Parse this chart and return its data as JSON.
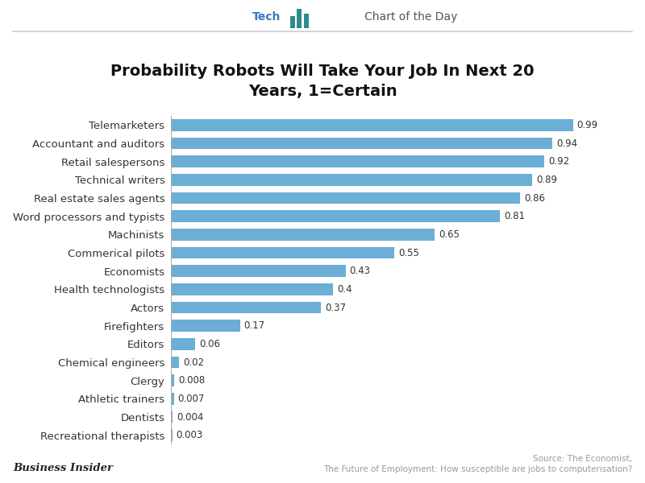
{
  "title": "Probability Robots Will Take Your Job In Next 20\nYears, 1=Certain",
  "categories": [
    "Telemarketers",
    "Accountant and auditors",
    "Retail salespersons",
    "Technical writers",
    "Real estate sales agents",
    "Word processors and typists",
    "Machinists",
    "Commerical pilots",
    "Economists",
    "Health technologists",
    "Actors",
    "Firefighters",
    "Editors",
    "Chemical engineers",
    "Clergy",
    "Athletic trainers",
    "Dentists",
    "Recreational therapists"
  ],
  "values": [
    0.99,
    0.94,
    0.92,
    0.89,
    0.86,
    0.81,
    0.65,
    0.55,
    0.43,
    0.4,
    0.37,
    0.17,
    0.06,
    0.02,
    0.008,
    0.007,
    0.004,
    0.003
  ],
  "bar_color": "#6baed6",
  "background_color": "#ffffff",
  "source_text": "Source: The Economist,\nThe Future of Employment: How susceptible are jobs to computerisation?",
  "footer_left": "Business Insider",
  "title_fontsize": 14,
  "label_fontsize": 9.5,
  "value_fontsize": 8.5,
  "xlim": [
    0,
    1.08
  ],
  "header_tech_color": "#3a7abf",
  "header_day_color": "#555555",
  "header_line_color": "#cccccc",
  "spine_color": "#cccccc",
  "footer_color": "#222222",
  "source_color": "#999999"
}
